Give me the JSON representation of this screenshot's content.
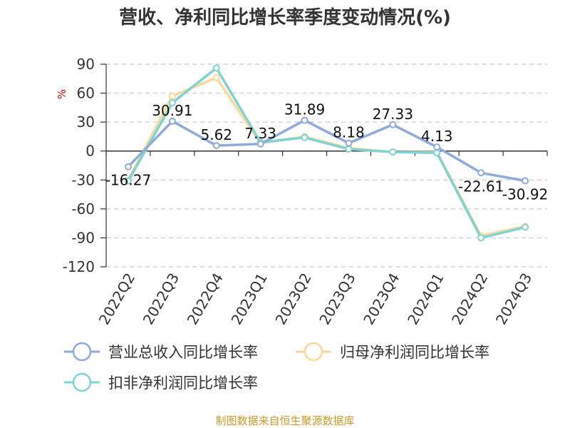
{
  "chart_data": {
    "type": "line",
    "title": "营收、净利同比增长率季度变动情况(%)",
    "ylabel": "%",
    "categories": [
      "2022Q2",
      "2022Q3",
      "2022Q4",
      "2023Q1",
      "2023Q2",
      "2023Q3",
      "2023Q4",
      "2024Q1",
      "2024Q2",
      "2024Q3"
    ],
    "ylim": [
      -120,
      90
    ],
    "yticks": [
      90,
      60,
      30,
      0,
      -30,
      -60,
      -90,
      -120
    ],
    "grid": true,
    "legend_position": "bottom",
    "series": [
      {
        "name": "营业总收入同比增长率",
        "color": "#8faadc",
        "values": [
          -16.27,
          30.91,
          5.62,
          7.33,
          31.89,
          8.18,
          27.33,
          4.13,
          -22.61,
          -30.92
        ],
        "labels": [
          "-16.27",
          "30.91",
          "5.62",
          "7.33",
          "31.89",
          "8.18",
          "27.33",
          "4.13",
          "-22.61",
          "-30.92"
        ]
      },
      {
        "name": "归母净利润同比增长率",
        "color": "#fcd89a",
        "values": [
          -30,
          57,
          76,
          8,
          15,
          3,
          -1,
          -1,
          -88,
          -78
        ]
      },
      {
        "name": "扣非净利润同比增长率",
        "color": "#7fd3d3",
        "values": [
          -31,
          50,
          86,
          9,
          14,
          2,
          -1,
          -2,
          -90,
          -79
        ]
      }
    ]
  },
  "source_text": "制图数据来自恒生聚源数据库"
}
